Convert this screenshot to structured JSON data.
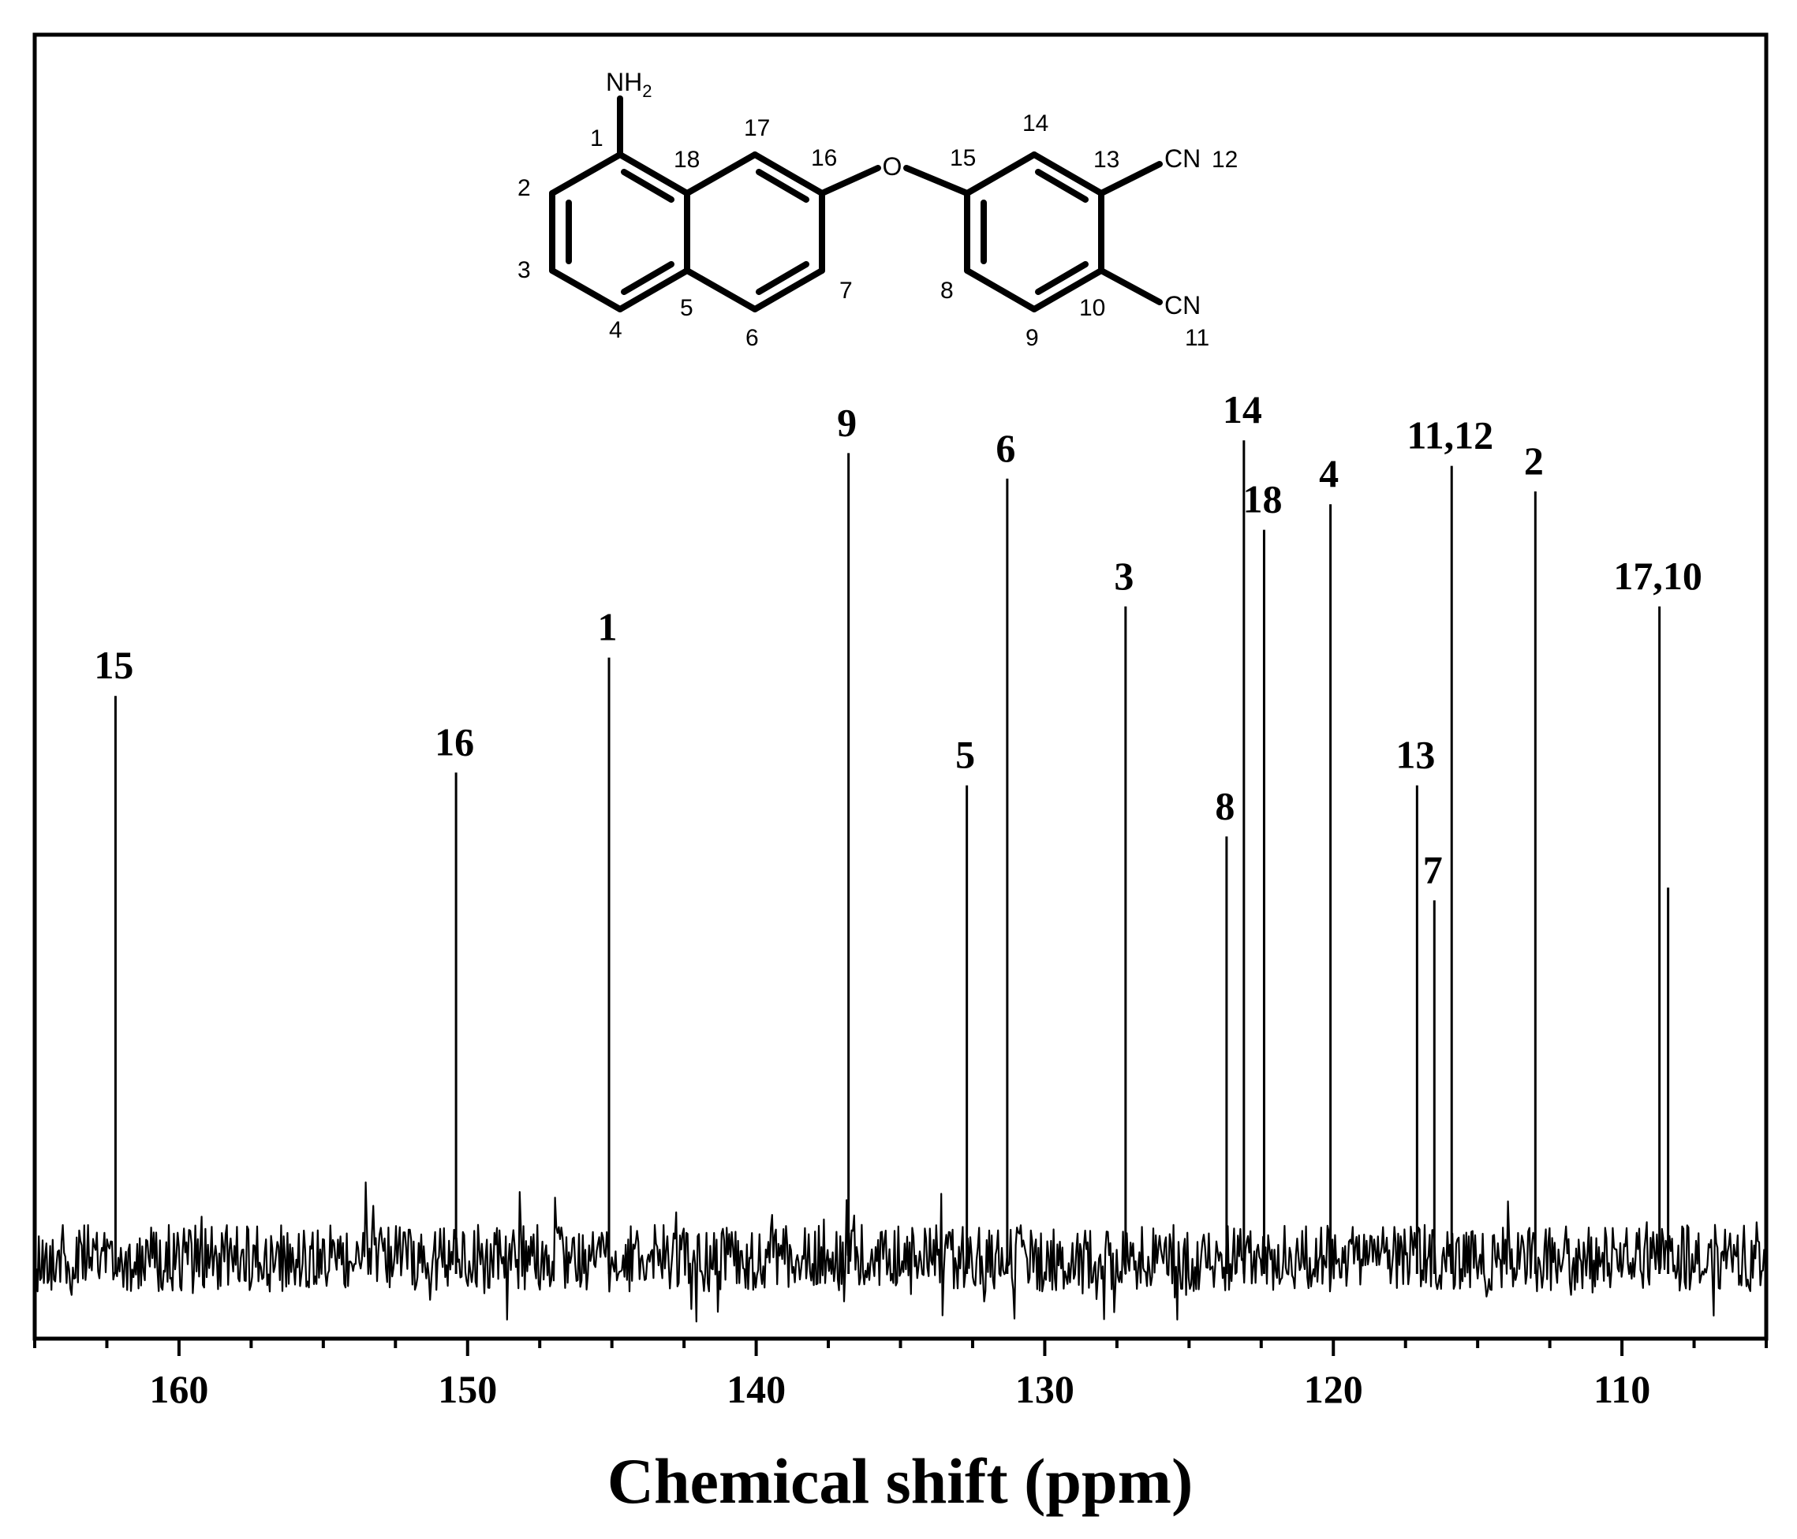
{
  "chart_data": {
    "type": "line",
    "title": "",
    "xlabel": "Chemical shift (ppm)",
    "ylabel": "",
    "xlim": [
      165,
      105
    ],
    "x_reversed": true,
    "x_ticks": [
      160,
      150,
      140,
      130,
      120,
      110
    ],
    "x_minor_step": 2.5,
    "grid": false,
    "legend": "none",
    "peaks": [
      {
        "label": "15",
        "shift": 162.2,
        "intensity": 0.44
      },
      {
        "label": "16",
        "shift": 150.4,
        "intensity": 0.38
      },
      {
        "label": "1",
        "shift": 145.1,
        "intensity": 0.47
      },
      {
        "label": "9",
        "shift": 136.8,
        "intensity": 0.63
      },
      {
        "label": "5",
        "shift": 132.7,
        "intensity": 0.37
      },
      {
        "label": "6",
        "shift": 131.3,
        "intensity": 0.61
      },
      {
        "label": "3",
        "shift": 127.2,
        "intensity": 0.51
      },
      {
        "label": "8",
        "shift": 123.7,
        "intensity": 0.33
      },
      {
        "label": "14",
        "shift": 123.1,
        "intensity": 0.64
      },
      {
        "label": "18",
        "shift": 122.4,
        "intensity": 0.57
      },
      {
        "label": "4",
        "shift": 120.1,
        "intensity": 0.59
      },
      {
        "label": "13",
        "shift": 117.1,
        "intensity": 0.37
      },
      {
        "label": "7",
        "shift": 116.5,
        "intensity": 0.28
      },
      {
        "label": "11,12",
        "shift": 115.9,
        "intensity": 0.62
      },
      {
        "label": "2",
        "shift": 113.0,
        "intensity": 0.6
      },
      {
        "label": "17,10",
        "shift": 108.7,
        "intensity": 0.51
      },
      {
        "label": "",
        "shift": 108.4,
        "intensity": 0.29
      }
    ]
  },
  "molecule": {
    "amine": "NH",
    "amine_sub": "2",
    "oxygen": "O",
    "nitrile_a": "CN",
    "nitrile_b": "CN",
    "atom_numbers": {
      "n1": "1",
      "n2": "2",
      "n3": "3",
      "n4": "4",
      "n5": "5",
      "n6": "6",
      "n7": "7",
      "n8": "8",
      "n9": "9",
      "n10": "10",
      "n11": "11",
      "n12": "12",
      "n13": "13",
      "n14": "14",
      "n15": "15",
      "n16": "16",
      "n17": "17",
      "n18": "18"
    }
  },
  "colors": {
    "line": "#000000",
    "background": "#ffffff"
  }
}
